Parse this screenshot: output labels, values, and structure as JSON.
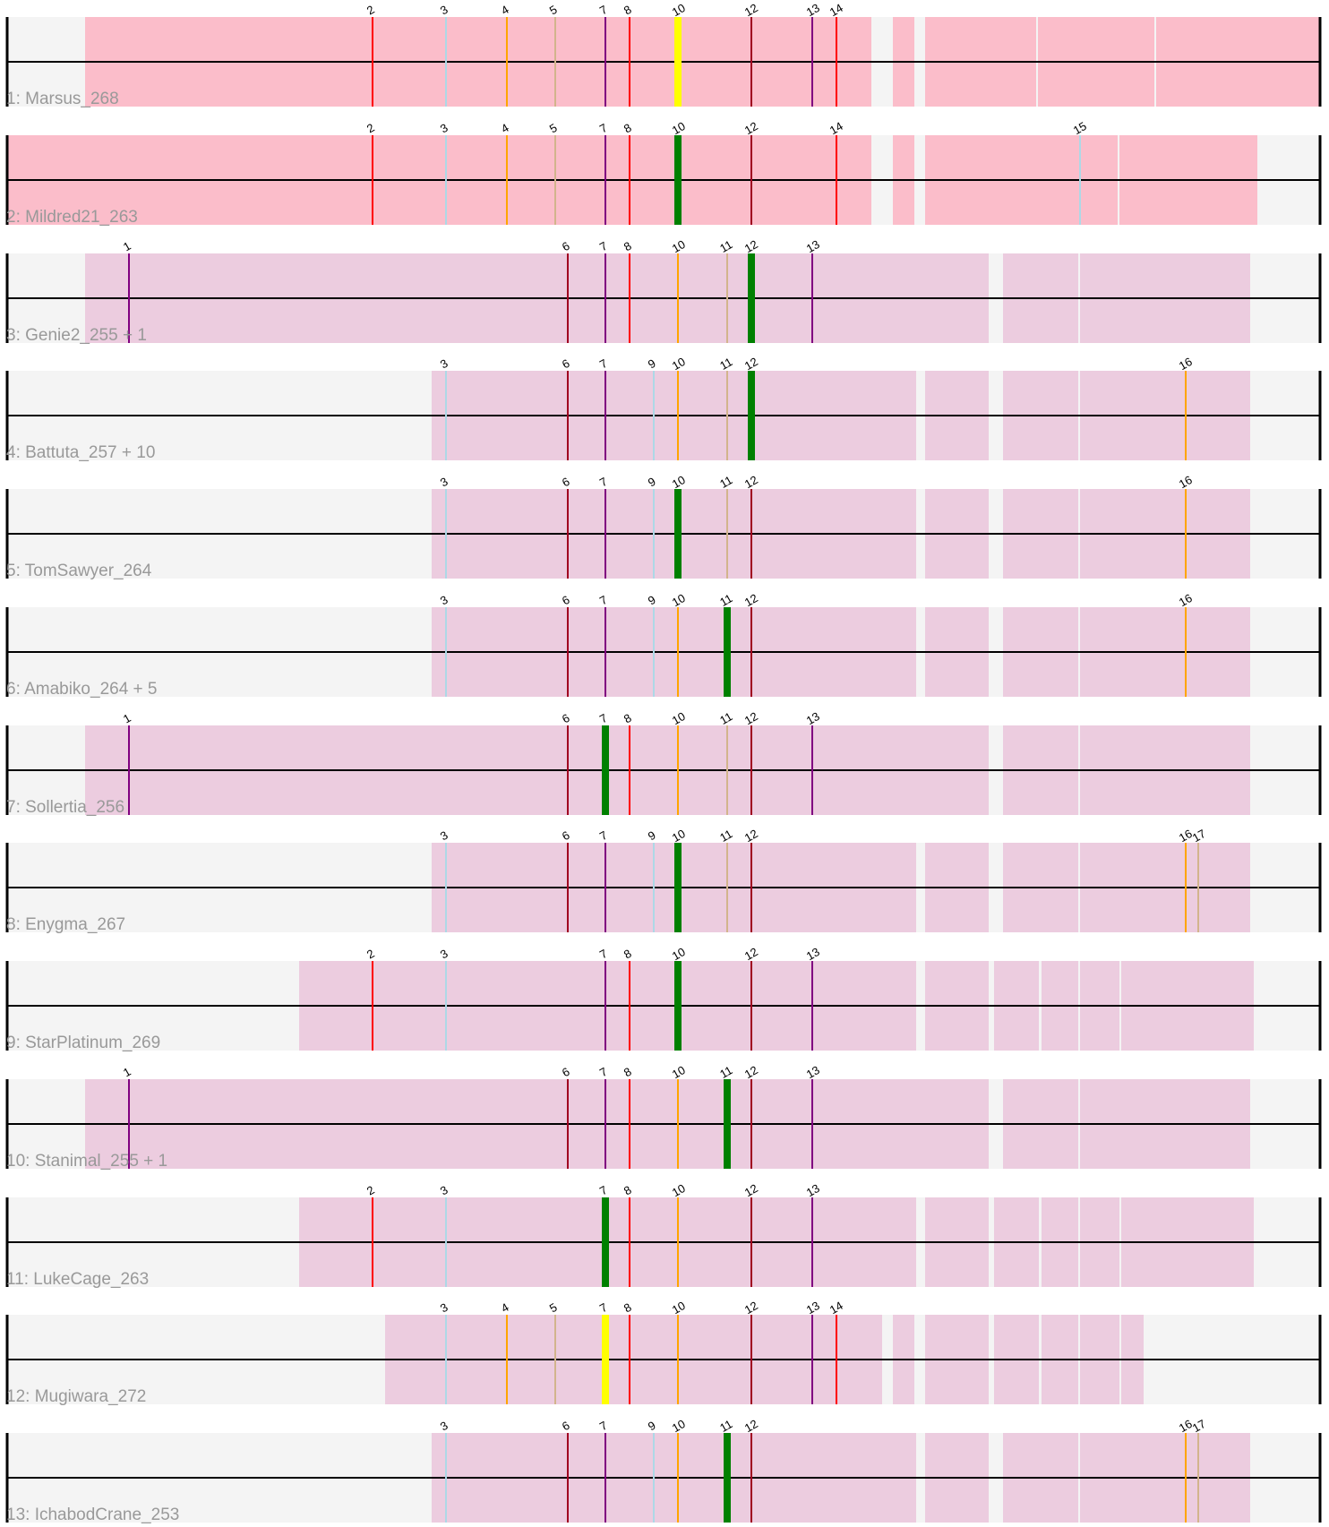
{
  "diagram": {
    "colors": {
      "row_background": "#f4f4f4",
      "block_pink": "#fbbdca",
      "block_mauve": "#ecccdf",
      "axis_line": "#000000",
      "row_label": "#999999",
      "highlight_green": "#008000",
      "highlight_yellow": "#ffff00",
      "block_divider": "#ffffff"
    },
    "marker_colors": {
      "1": "#800080",
      "2": "#ff0000",
      "3": "#add8e6",
      "4": "#ffa500",
      "5": "#d2b48c",
      "6": "#a00020",
      "7": "#800080",
      "8": "#ff0000",
      "9": "#add8e6",
      "10": "#ffa500",
      "11": "#d2b48c",
      "12": "#a00020",
      "13": "#800080",
      "14": "#ff0000",
      "15": "#add8e6",
      "16": "#ffa500",
      "17": "#d2b48c"
    },
    "rows": [
      {
        "label": "1: Marsus_268",
        "block_color": "pink",
        "blocks": [
          [
            95,
            973
          ],
          [
            997,
            1021
          ],
          [
            1033,
            1157
          ],
          [
            1159,
            1289
          ],
          [
            1291,
            1474
          ]
        ],
        "markers": [
          "2",
          "3",
          "4",
          "5",
          "7",
          "8",
          "10",
          "12",
          "13",
          "14"
        ],
        "highlight": {
          "marker": "10",
          "color": "yellow"
        }
      },
      {
        "label": "2: Mildred21_263",
        "block_color": "pink",
        "blocks": [
          [
            8,
            973
          ],
          [
            997,
            1021
          ],
          [
            1033,
            1248
          ],
          [
            1250,
            1404
          ]
        ],
        "markers": [
          "2",
          "3",
          "4",
          "5",
          "7",
          "8",
          "10",
          "12",
          "14",
          "15"
        ],
        "highlight": {
          "marker": "10",
          "color": "green"
        }
      },
      {
        "label": "3: Genie2_255 + 1",
        "block_color": "mauve",
        "blocks": [
          [
            95,
            1104
          ],
          [
            1120,
            1204
          ],
          [
            1206,
            1396
          ]
        ],
        "markers": [
          "1",
          "6",
          "7",
          "8",
          "10",
          "11",
          "12",
          "13"
        ],
        "highlight": {
          "marker": "12",
          "color": "green"
        }
      },
      {
        "label": "4: Battuta_257 + 10",
        "block_color": "mauve",
        "blocks": [
          [
            482,
            1023
          ],
          [
            1033,
            1104
          ],
          [
            1120,
            1204
          ],
          [
            1206,
            1396
          ]
        ],
        "markers": [
          "3",
          "6",
          "7",
          "9",
          "10",
          "11",
          "12",
          "16"
        ],
        "highlight": {
          "marker": "12",
          "color": "green"
        }
      },
      {
        "label": "5: TomSawyer_264",
        "block_color": "mauve",
        "blocks": [
          [
            482,
            1023
          ],
          [
            1033,
            1104
          ],
          [
            1120,
            1204
          ],
          [
            1206,
            1396
          ]
        ],
        "markers": [
          "3",
          "6",
          "7",
          "9",
          "10",
          "11",
          "12",
          "16"
        ],
        "highlight": {
          "marker": "10",
          "color": "green"
        }
      },
      {
        "label": "6: Amabiko_264 + 5",
        "block_color": "mauve",
        "blocks": [
          [
            482,
            1023
          ],
          [
            1033,
            1104
          ],
          [
            1120,
            1204
          ],
          [
            1206,
            1396
          ]
        ],
        "markers": [
          "3",
          "6",
          "7",
          "9",
          "10",
          "11",
          "12",
          "16"
        ],
        "highlight": {
          "marker": "11",
          "color": "green"
        }
      },
      {
        "label": "7: Sollertia_256",
        "block_color": "mauve",
        "blocks": [
          [
            95,
            1104
          ],
          [
            1120,
            1204
          ],
          [
            1206,
            1396
          ]
        ],
        "markers": [
          "1",
          "6",
          "7",
          "8",
          "10",
          "11",
          "12",
          "13"
        ],
        "highlight": {
          "marker": "7",
          "color": "green"
        }
      },
      {
        "label": "8: Enygma_267",
        "block_color": "mauve",
        "blocks": [
          [
            482,
            1023
          ],
          [
            1033,
            1104
          ],
          [
            1120,
            1204
          ],
          [
            1206,
            1396
          ]
        ],
        "markers": [
          "3",
          "6",
          "7",
          "9",
          "10",
          "11",
          "12",
          "16",
          "17"
        ],
        "highlight": {
          "marker": "10",
          "color": "green"
        }
      },
      {
        "label": "9: StarPlatinum_269",
        "block_color": "mauve",
        "blocks": [
          [
            334,
            1023
          ],
          [
            1033,
            1104
          ],
          [
            1110,
            1160
          ],
          [
            1163,
            1204
          ],
          [
            1206,
            1250
          ],
          [
            1252,
            1400
          ]
        ],
        "markers": [
          "2",
          "3",
          "7",
          "8",
          "10",
          "12",
          "13"
        ],
        "highlight": {
          "marker": "10",
          "color": "green"
        }
      },
      {
        "label": "10: Stanimal_255 + 1",
        "block_color": "mauve",
        "blocks": [
          [
            95,
            1104
          ],
          [
            1120,
            1204
          ],
          [
            1206,
            1396
          ]
        ],
        "markers": [
          "1",
          "6",
          "7",
          "8",
          "10",
          "11",
          "12",
          "13"
        ],
        "highlight": {
          "marker": "11",
          "color": "green"
        }
      },
      {
        "label": "11: LukeCage_263",
        "block_color": "mauve",
        "blocks": [
          [
            334,
            1023
          ],
          [
            1033,
            1104
          ],
          [
            1110,
            1160
          ],
          [
            1163,
            1204
          ],
          [
            1206,
            1250
          ],
          [
            1252,
            1400
          ]
        ],
        "markers": [
          "2",
          "3",
          "7",
          "8",
          "10",
          "12",
          "13"
        ],
        "highlight": {
          "marker": "7",
          "color": "green"
        }
      },
      {
        "label": "12: Mugiwara_272",
        "block_color": "mauve",
        "blocks": [
          [
            430,
            985
          ],
          [
            997,
            1021
          ],
          [
            1033,
            1104
          ],
          [
            1110,
            1160
          ],
          [
            1163,
            1204
          ],
          [
            1206,
            1250
          ],
          [
            1252,
            1277
          ]
        ],
        "markers": [
          "3",
          "4",
          "5",
          "7",
          "8",
          "10",
          "12",
          "13",
          "14"
        ],
        "highlight": {
          "marker": "7",
          "color": "yellow"
        }
      },
      {
        "label": "13: IchabodCrane_253",
        "block_color": "mauve",
        "blocks": [
          [
            482,
            1023
          ],
          [
            1033,
            1104
          ],
          [
            1120,
            1204
          ],
          [
            1206,
            1396
          ]
        ],
        "markers": [
          "3",
          "6",
          "7",
          "9",
          "10",
          "11",
          "12",
          "16",
          "17"
        ],
        "highlight": {
          "marker": "11",
          "color": "green"
        }
      }
    ]
  }
}
